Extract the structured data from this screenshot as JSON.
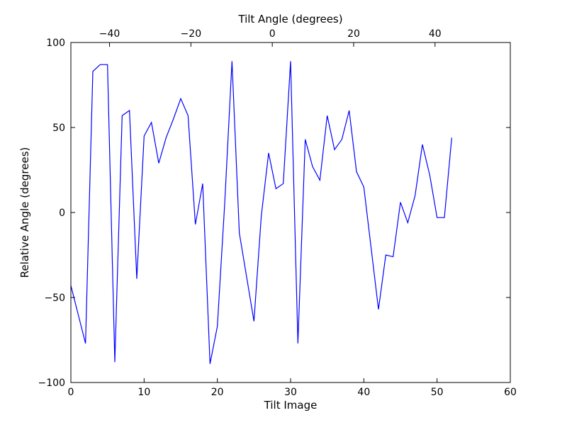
{
  "chart_data": {
    "type": "line",
    "title": "",
    "xlabel": "Tilt Image",
    "ylabel": "Relative Angle (degrees)",
    "top_xlabel": "Tilt Angle (degrees)",
    "xlim": [
      0,
      60
    ],
    "ylim": [
      -100,
      100
    ],
    "top_xlim": [
      -49.5,
      58.5
    ],
    "x_ticks": [
      0,
      10,
      20,
      30,
      40,
      50,
      60
    ],
    "x_tick_labels": [
      "0",
      "10",
      "20",
      "30",
      "40",
      "50",
      "60"
    ],
    "y_ticks": [
      100,
      50,
      0,
      -50,
      -100
    ],
    "y_tick_labels": [
      "100",
      "50",
      "0",
      "−50",
      "−100"
    ],
    "top_x_ticks": [
      -40,
      -20,
      0,
      20,
      40
    ],
    "top_x_tick_labels": [
      "−40",
      "−20",
      "0",
      "20",
      "40"
    ],
    "grid": false,
    "line_color": "#0000ff",
    "series": [
      {
        "x": [
          0,
          1,
          2,
          3,
          4,
          5,
          6,
          7,
          8,
          9,
          10,
          11,
          12,
          13,
          14,
          15,
          16,
          17,
          18,
          19,
          20,
          21,
          22,
          23,
          24,
          25,
          26,
          27,
          28,
          29,
          30,
          31,
          32,
          33,
          34,
          35,
          36,
          37,
          38,
          39,
          40,
          41,
          42,
          43,
          44,
          45,
          46,
          47,
          48,
          49,
          50,
          51,
          52
        ],
        "values": [
          -43,
          -60,
          -77,
          83,
          87,
          87,
          -88,
          57,
          60,
          -39,
          45,
          53,
          29,
          44,
          55,
          67,
          57,
          -7,
          17,
          -89,
          -67,
          5,
          89,
          -12,
          -38,
          -64,
          -2,
          35,
          14,
          17,
          89,
          -77,
          43,
          27,
          19,
          57,
          37,
          43,
          60,
          24,
          15,
          -21,
          -57,
          -25,
          -26,
          6,
          -6,
          10,
          40,
          22,
          -3,
          -3,
          44
        ]
      }
    ]
  }
}
